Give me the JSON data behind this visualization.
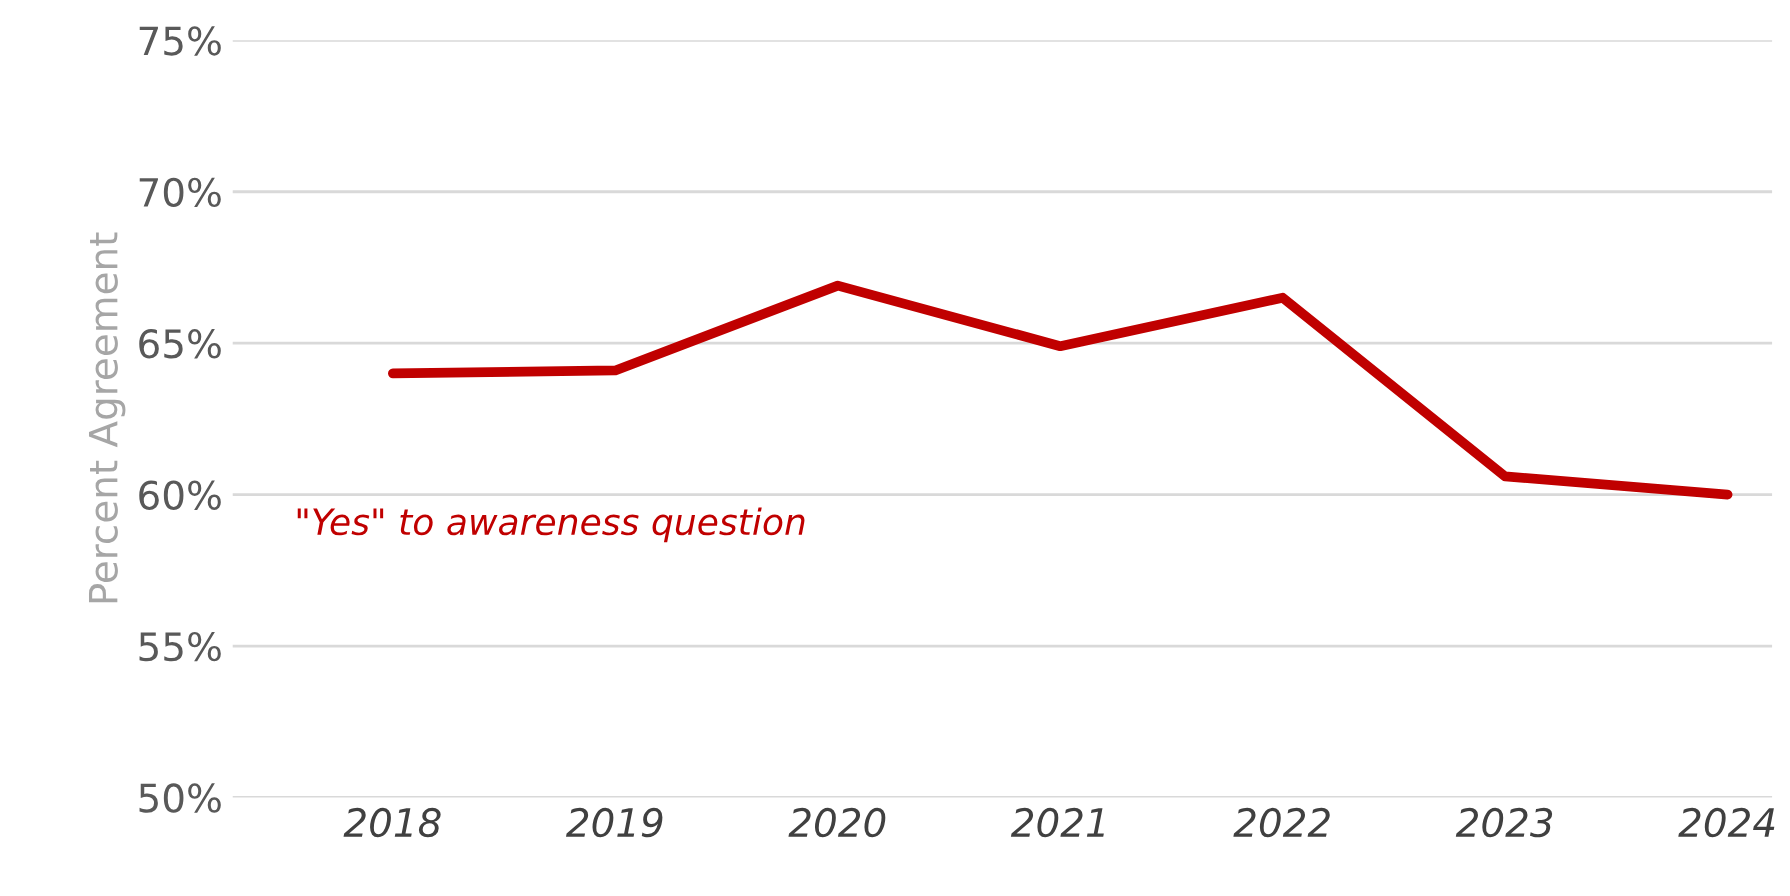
{
  "chart_data": {
    "type": "line",
    "ylabel": "Percent Agreement",
    "categories": [
      "2018",
      "2019",
      "2020",
      "2021",
      "2022",
      "2023",
      "2024"
    ],
    "series": [
      {
        "name": "\"Yes\" to awareness question",
        "color": "#c00000",
        "values": [
          64.0,
          64.1,
          66.9,
          64.9,
          66.5,
          60.6,
          60.0
        ]
      }
    ],
    "ylim": [
      50,
      75
    ],
    "yticks": [
      {
        "value": 50,
        "label": "50%"
      },
      {
        "value": 55,
        "label": "55%"
      },
      {
        "value": 60,
        "label": "60%"
      },
      {
        "value": 65,
        "label": "65%"
      },
      {
        "value": 70,
        "label": "70%"
      },
      {
        "value": 75,
        "label": "75%"
      }
    ],
    "grid": "y",
    "legend": false,
    "marker": "none",
    "line_style": "solid"
  }
}
